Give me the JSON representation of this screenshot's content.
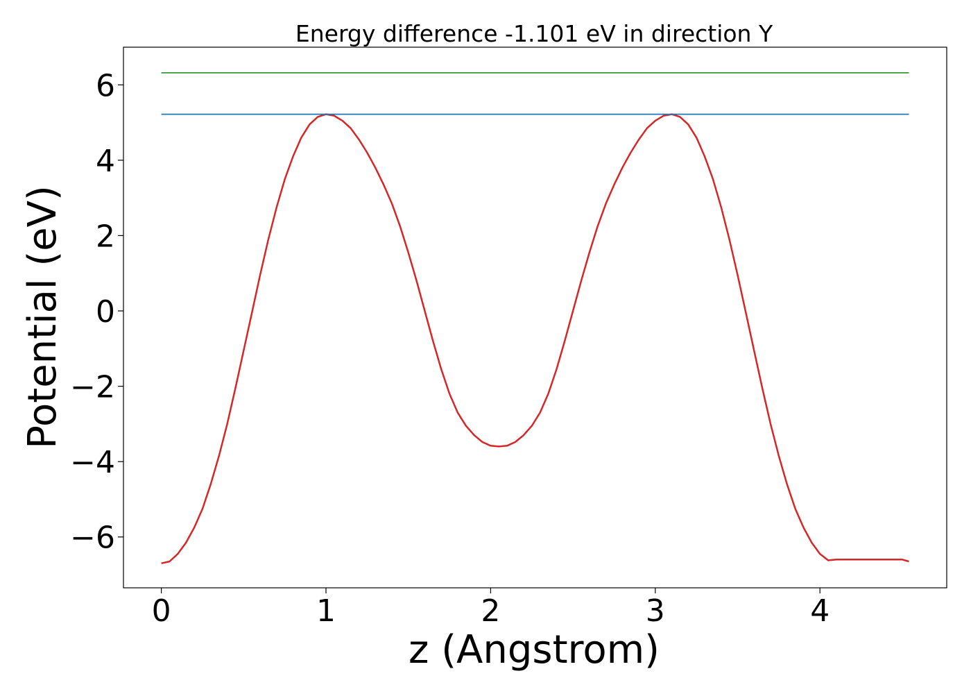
{
  "chart_data": {
    "type": "line",
    "title": "Energy difference -1.101 eV in direction Y",
    "xlabel": "z (Angstrom)",
    "ylabel": "Potential (eV)",
    "xlim": [
      -0.23,
      4.77
    ],
    "ylim": [
      -7.35,
      7.0
    ],
    "xticks": [
      0,
      1,
      2,
      3,
      4
    ],
    "xtick_labels": [
      "0",
      "1",
      "2",
      "3",
      "4"
    ],
    "yticks": [
      -6,
      -4,
      -2,
      0,
      2,
      4,
      6
    ],
    "ytick_labels": [
      "−6",
      "−4",
      "−2",
      "0",
      "2",
      "4",
      "6"
    ],
    "grid": false,
    "series": [
      {
        "color": "#d62728",
        "x": [
          0.0,
          0.05,
          0.1,
          0.15,
          0.2,
          0.25,
          0.3,
          0.35,
          0.4,
          0.45,
          0.5,
          0.55,
          0.6,
          0.65,
          0.7,
          0.75,
          0.8,
          0.85,
          0.9,
          0.95,
          1.0,
          1.05,
          1.1,
          1.15,
          1.2,
          1.25,
          1.3,
          1.35,
          1.4,
          1.45,
          1.5,
          1.55,
          1.6,
          1.65,
          1.7,
          1.75,
          1.8,
          1.85,
          1.9,
          1.95,
          2.0,
          2.05,
          2.1,
          2.15,
          2.2,
          2.25,
          2.3,
          2.35,
          2.4,
          2.45,
          2.5,
          2.55,
          2.6,
          2.65,
          2.7,
          2.75,
          2.8,
          2.85,
          2.9,
          2.95,
          3.0,
          3.05,
          3.1,
          3.15,
          3.2,
          3.25,
          3.3,
          3.35,
          3.4,
          3.45,
          3.5,
          3.55,
          3.6,
          3.65,
          3.7,
          3.75,
          3.8,
          3.85,
          3.9,
          3.95,
          4.0,
          4.05,
          4.1,
          4.15,
          4.2,
          4.25,
          4.3,
          4.35,
          4.4,
          4.45,
          4.5,
          4.54
        ],
        "y": [
          -6.7,
          -6.65,
          -6.45,
          -6.15,
          -5.75,
          -5.25,
          -4.6,
          -3.85,
          -3.0,
          -2.05,
          -1.05,
          -0.05,
          0.95,
          1.9,
          2.75,
          3.5,
          4.1,
          4.6,
          4.95,
          5.15,
          5.22,
          5.18,
          5.05,
          4.85,
          4.55,
          4.2,
          3.8,
          3.35,
          2.85,
          2.25,
          1.55,
          0.8,
          0.0,
          -0.8,
          -1.55,
          -2.2,
          -2.7,
          -3.05,
          -3.3,
          -3.48,
          -3.58,
          -3.6,
          -3.58,
          -3.48,
          -3.3,
          -3.05,
          -2.7,
          -2.2,
          -1.55,
          -0.8,
          0.0,
          0.8,
          1.55,
          2.25,
          2.85,
          3.35,
          3.8,
          4.2,
          4.55,
          4.85,
          5.05,
          5.18,
          5.22,
          5.15,
          4.95,
          4.6,
          4.1,
          3.5,
          2.75,
          1.9,
          0.95,
          -0.05,
          -1.05,
          -2.05,
          -3.0,
          -3.85,
          -4.6,
          -5.25,
          -5.75,
          -6.15,
          -6.45,
          -6.62,
          -6.6,
          -6.6,
          -6.6,
          -6.6,
          -6.6,
          -6.6,
          -6.6,
          -6.6,
          -6.6,
          -6.65
        ]
      },
      {
        "color": "#1f77b4",
        "x": [
          0.0,
          4.54
        ],
        "y": [
          5.22,
          5.22
        ]
      },
      {
        "color": "#2ca02c",
        "x": [
          0.0,
          4.54
        ],
        "y": [
          6.32,
          6.32
        ]
      }
    ]
  }
}
